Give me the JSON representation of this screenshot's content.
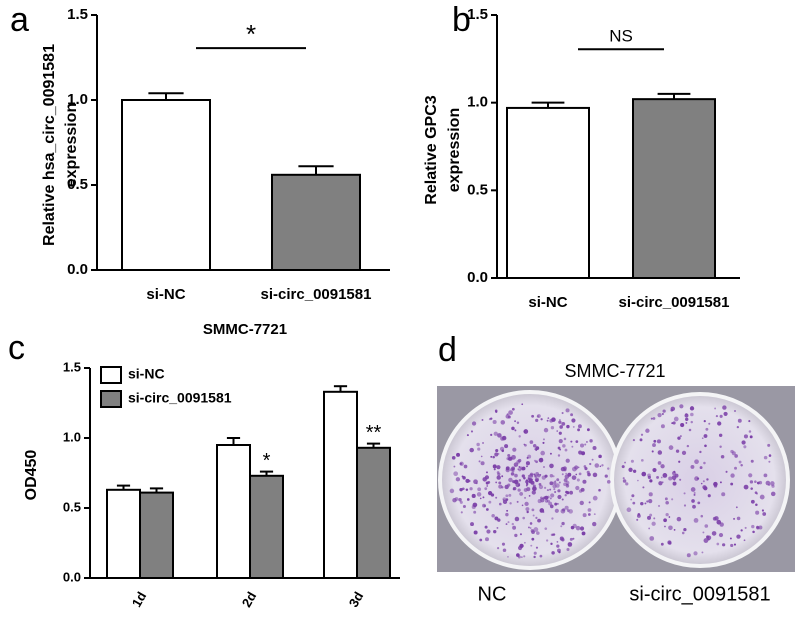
{
  "chart_data": [
    {
      "type": "bar",
      "panel_label": "a",
      "ylabel": [
        "Relative hsa_circ_0091581",
        "expression"
      ],
      "categories": [
        "si-NC",
        "si-circ_0091581"
      ],
      "values": [
        1.0,
        0.56
      ],
      "errors": [
        0.04,
        0.05
      ],
      "colors": [
        "#ffffff",
        "#808080"
      ],
      "ylim": [
        0,
        1.5
      ],
      "yticks": [
        {
          "value": 0,
          "label": "0.0"
        },
        {
          "value": 0.5,
          "label": "0.5"
        },
        {
          "value": 1,
          "label": "1.0"
        },
        {
          "value": 1.5,
          "label": "1.5"
        }
      ],
      "significance": "*"
    },
    {
      "type": "bar",
      "panel_label": "b",
      "ylabel": [
        "Relative GPC3",
        "expression"
      ],
      "categories": [
        "si-NC",
        "si-circ_0091581"
      ],
      "values": [
        0.97,
        1.02
      ],
      "errors": [
        0.03,
        0.03
      ],
      "colors": [
        "#ffffff",
        "#808080"
      ],
      "ylim": [
        0,
        1.5
      ],
      "yticks": [
        {
          "value": 0,
          "label": "0.0"
        },
        {
          "value": 0.5,
          "label": "0.5"
        },
        {
          "value": 1,
          "label": "1.0"
        },
        {
          "value": 1.5,
          "label": "1.5"
        }
      ],
      "significance": "NS"
    },
    {
      "type": "grouped-bar",
      "panel_label": "c",
      "title": "SMMC-7721",
      "ylabel": [
        "OD450"
      ],
      "categories": [
        "1d",
        "2d",
        "3d"
      ],
      "series": [
        {
          "name": "si-NC",
          "color": "#ffffff",
          "values": [
            0.63,
            0.95,
            1.33
          ],
          "errors": [
            0.03,
            0.05,
            0.04
          ],
          "significance": [
            null,
            null,
            null
          ]
        },
        {
          "name": "si-circ_0091581",
          "color": "#808080",
          "values": [
            0.61,
            0.73,
            0.93
          ],
          "errors": [
            0.03,
            0.03,
            0.03
          ],
          "significance": [
            null,
            "*",
            "**"
          ]
        }
      ],
      "ylim": [
        0,
        1.5
      ],
      "yticks": [
        {
          "value": 0,
          "label": "0.0"
        },
        {
          "value": 0.5,
          "label": "0.5"
        },
        {
          "value": 1,
          "label": "1.0"
        },
        {
          "value": 1.5,
          "label": "1.5"
        }
      ]
    }
  ],
  "photo": {
    "panel_label": "d",
    "title": "SMMC-7721",
    "captions": [
      "NC",
      "si-circ_0091581"
    ]
  }
}
